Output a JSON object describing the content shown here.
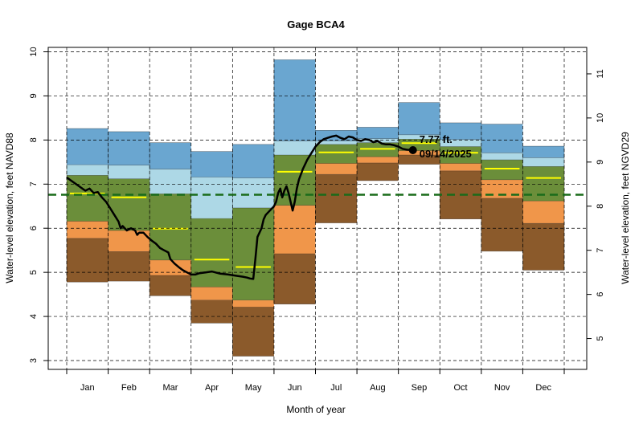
{
  "chart_data": {
    "type": "area",
    "title": "Gage BCA4",
    "xlabel": "Month of year",
    "ylabel_left": "Water-level elevation, feet NAVD88",
    "ylabel_right": "Water-level elevation, feet NGVD29",
    "months": [
      "Jan",
      "Feb",
      "Mar",
      "Apr",
      "May",
      "Jun",
      "Jul",
      "Aug",
      "Sep",
      "Oct",
      "Nov",
      "Dec"
    ],
    "ylim": [
      2.8,
      10.1
    ],
    "yticks_left": [
      3,
      4,
      5,
      6,
      7,
      8,
      9,
      10
    ],
    "yticks_right": [
      5,
      6,
      7,
      8,
      9,
      10,
      11
    ],
    "right_axis_offset": 1.5,
    "grid": true,
    "band_colors": {
      "min_p10": "#8b5a2b",
      "p10_p25": "#f0964a",
      "p25_p75": "#6b8e3a",
      "p75_p90": "#add8e6",
      "p90_max": "#6aa6d0",
      "median": "#ffff00",
      "reference": "#1a6b1a"
    },
    "bands": [
      {
        "month": "Jan",
        "min": 4.78,
        "p10": 5.77,
        "p25": 6.16,
        "median": 6.79,
        "p75": 7.2,
        "p90": 7.44,
        "max": 8.26
      },
      {
        "month": "Feb",
        "min": 4.8,
        "p10": 5.47,
        "p25": 5.95,
        "median": 6.7,
        "p75": 7.12,
        "p90": 7.43,
        "max": 8.19
      },
      {
        "month": "Mar",
        "min": 4.47,
        "p10": 4.93,
        "p25": 5.28,
        "median": 5.99,
        "p75": 6.78,
        "p90": 7.34,
        "max": 7.94
      },
      {
        "month": "Apr",
        "min": 3.85,
        "p10": 4.37,
        "p25": 4.67,
        "median": 5.29,
        "p75": 6.22,
        "p90": 7.16,
        "max": 7.74
      },
      {
        "month": "May",
        "min": 3.1,
        "p10": 4.21,
        "p25": 4.37,
        "median": 5.12,
        "p75": 6.46,
        "p90": 7.14,
        "max": 7.9
      },
      {
        "month": "Jun",
        "min": 4.28,
        "p10": 5.42,
        "p25": 6.52,
        "median": 7.28,
        "p75": 7.66,
        "p90": 7.98,
        "max": 9.82
      },
      {
        "month": "Jul",
        "min": 6.12,
        "p10": 7.22,
        "p25": 7.47,
        "median": 7.72,
        "p75": 7.9,
        "p90": 7.98,
        "max": 8.22
      },
      {
        "month": "Aug",
        "min": 7.08,
        "p10": 7.48,
        "p25": 7.62,
        "median": 7.8,
        "p75": 7.94,
        "p90": 8.03,
        "max": 8.29
      },
      {
        "month": "Sep",
        "min": 7.45,
        "p10": 7.66,
        "p25": 7.76,
        "median": 7.93,
        "p75": 8.02,
        "p90": 8.12,
        "max": 8.85
      },
      {
        "month": "Oct",
        "min": 6.21,
        "p10": 7.3,
        "p25": 7.47,
        "median": 7.71,
        "p75": 7.85,
        "p90": 8.01,
        "max": 8.39
      },
      {
        "month": "Nov",
        "min": 5.48,
        "p10": 6.68,
        "p25": 7.1,
        "median": 7.35,
        "p75": 7.55,
        "p90": 7.71,
        "max": 8.36
      },
      {
        "month": "Dec",
        "min": 5.05,
        "p10": 6.11,
        "p25": 6.62,
        "median": 7.14,
        "p75": 7.4,
        "p90": 7.6,
        "max": 7.86
      }
    ],
    "reference_level": 6.76,
    "current_series": {
      "x_month": [
        0.0,
        0.15,
        0.3,
        0.45,
        0.55,
        0.65,
        0.75,
        0.85,
        0.95,
        1.05,
        1.15,
        1.25,
        1.3,
        1.35,
        1.45,
        1.55,
        1.65,
        1.7,
        1.75,
        1.85,
        1.95,
        2.05,
        2.15,
        2.25,
        2.35,
        2.45,
        2.5,
        2.6,
        2.7,
        2.8,
        2.9,
        3.0,
        3.1,
        3.2,
        3.35,
        3.5,
        3.7,
        3.9,
        4.1,
        4.25,
        4.35,
        4.42,
        4.5,
        4.55,
        4.6,
        4.7,
        4.75,
        4.8,
        4.9,
        5.0,
        5.05,
        5.1,
        5.15,
        5.2,
        5.25,
        5.3,
        5.35,
        5.45,
        5.5,
        5.55,
        5.6,
        5.7,
        5.8,
        5.9,
        6.0,
        6.1,
        6.2,
        6.3,
        6.4,
        6.5,
        6.6,
        6.7,
        6.8,
        6.9,
        7.0,
        7.1,
        7.2,
        7.3,
        7.4,
        7.5,
        7.6,
        7.7,
        7.8,
        7.9,
        8.0,
        8.1,
        8.2,
        8.35
      ],
      "y": [
        7.15,
        7.05,
        6.95,
        6.85,
        6.9,
        6.8,
        6.82,
        6.7,
        6.6,
        6.45,
        6.3,
        6.15,
        6.0,
        6.05,
        5.95,
        6.0,
        5.95,
        5.85,
        5.9,
        5.9,
        5.8,
        5.72,
        5.65,
        5.55,
        5.5,
        5.45,
        5.3,
        5.2,
        5.12,
        5.05,
        5.0,
        4.95,
        4.95,
        4.98,
        5.0,
        5.02,
        4.97,
        4.95,
        4.92,
        4.9,
        4.88,
        4.86,
        4.85,
        5.3,
        5.8,
        6.0,
        6.2,
        6.3,
        6.4,
        6.5,
        6.6,
        6.8,
        6.9,
        6.7,
        6.85,
        6.95,
        6.8,
        6.4,
        6.6,
        6.9,
        7.1,
        7.35,
        7.55,
        7.7,
        7.85,
        7.95,
        8.02,
        8.05,
        8.08,
        8.1,
        8.05,
        8.02,
        8.08,
        8.06,
        8.0,
        7.98,
        8.02,
        8.0,
        7.95,
        7.98,
        7.92,
        7.9,
        7.9,
        7.88,
        7.85,
        7.8,
        7.78,
        7.77
      ],
      "annotation_value": "7.77 ft.",
      "annotation_date": "09/14/2025"
    }
  }
}
